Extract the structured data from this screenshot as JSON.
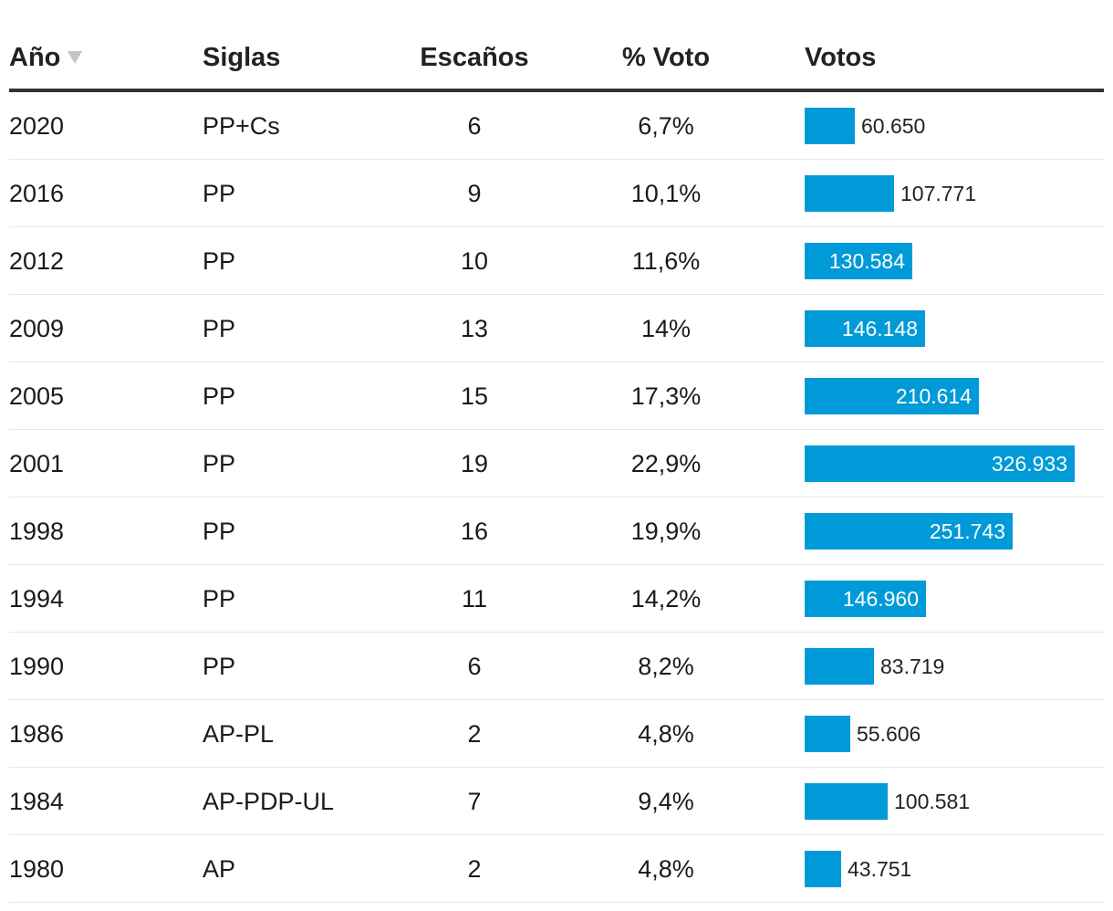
{
  "headers": {
    "year": "Año",
    "party": "Siglas",
    "seats": "Escaños",
    "pct": "% Voto",
    "votes": "Votos"
  },
  "colors": {
    "bar": "#009ad8",
    "header_rule": "#333333",
    "row_rule": "#e6e6e6"
  },
  "chart_data": {
    "type": "table",
    "columns": [
      "Año",
      "Siglas",
      "Escaños",
      "% Voto",
      "Votos"
    ],
    "sort": {
      "column": "Año",
      "direction": "descending"
    },
    "bar_column": "Votos",
    "rows": [
      {
        "year": "2020",
        "party": "PP+Cs",
        "seats": "6",
        "pct": "6,7%",
        "votes": 60650,
        "votes_label": "60.650"
      },
      {
        "year": "2016",
        "party": "PP",
        "seats": "9",
        "pct": "10,1%",
        "votes": 107771,
        "votes_label": "107.771"
      },
      {
        "year": "2012",
        "party": "PP",
        "seats": "10",
        "pct": "11,6%",
        "votes": 130584,
        "votes_label": "130.584"
      },
      {
        "year": "2009",
        "party": "PP",
        "seats": "13",
        "pct": "14%",
        "votes": 146148,
        "votes_label": "146.148"
      },
      {
        "year": "2005",
        "party": "PP",
        "seats": "15",
        "pct": "17,3%",
        "votes": 210614,
        "votes_label": "210.614"
      },
      {
        "year": "2001",
        "party": "PP",
        "seats": "19",
        "pct": "22,9%",
        "votes": 326933,
        "votes_label": "326.933"
      },
      {
        "year": "1998",
        "party": "PP",
        "seats": "16",
        "pct": "19,9%",
        "votes": 251743,
        "votes_label": "251.743"
      },
      {
        "year": "1994",
        "party": "PP",
        "seats": "11",
        "pct": "14,2%",
        "votes": 146960,
        "votes_label": "146.960"
      },
      {
        "year": "1990",
        "party": "PP",
        "seats": "6",
        "pct": "8,2%",
        "votes": 83719,
        "votes_label": "83.719"
      },
      {
        "year": "1986",
        "party": "AP-PL",
        "seats": "2",
        "pct": "4,8%",
        "votes": 55606,
        "votes_label": "55.606"
      },
      {
        "year": "1984",
        "party": "AP-PDP-UL",
        "seats": "7",
        "pct": "9,4%",
        "votes": 100581,
        "votes_label": "100.581"
      },
      {
        "year": "1980",
        "party": "AP",
        "seats": "2",
        "pct": "4,8%",
        "votes": 43751,
        "votes_label": "43.751"
      }
    ]
  }
}
